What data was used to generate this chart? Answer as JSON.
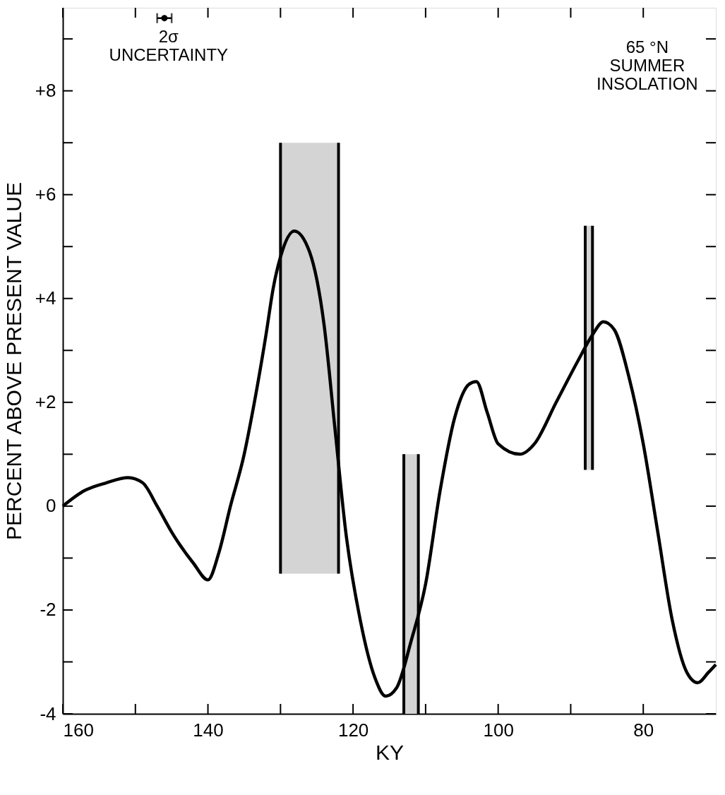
{
  "chart_data": {
    "type": "line",
    "xlabel": "KY",
    "ylabel": "PERCENT ABOVE PRESENT VALUE",
    "xlim": [
      160,
      70
    ],
    "ylim": [
      -4,
      9.6
    ],
    "xticks": [
      160,
      {
        "value": 150,
        "label": null
      },
      140,
      {
        "value": 130,
        "label": null
      },
      120,
      {
        "value": 110,
        "label": null
      },
      100,
      {
        "value": 90,
        "label": null
      },
      80
    ],
    "yticks": [
      {
        "value": -4,
        "label": "-4"
      },
      {
        "value": -3,
        "label": null
      },
      {
        "value": -2,
        "label": "-2"
      },
      {
        "value": -1,
        "label": null
      },
      0,
      {
        "value": 1,
        "label": null
      },
      {
        "value": 2,
        "label": "+2"
      },
      {
        "value": 3,
        "label": null
      },
      {
        "value": 4,
        "label": "+4"
      },
      {
        "value": 5,
        "label": null
      },
      {
        "value": 6,
        "label": "+6"
      },
      {
        "value": 7,
        "label": null
      },
      {
        "value": 8,
        "label": "+8"
      },
      {
        "value": 9,
        "label": null
      }
    ],
    "grid": false,
    "marker": "none",
    "line_style": "solid",
    "series": [
      {
        "color": "#000000",
        "x": [
          160,
          157,
          154,
          151,
          149,
          147,
          145,
          142,
          140,
          138.5,
          136.9,
          135,
          134,
          132,
          131,
          130,
          128.1,
          126,
          124,
          122.5,
          121,
          119,
          117,
          115.5,
          114,
          112,
          110,
          108,
          106,
          104,
          103,
          101.5,
          100,
          97,
          95,
          92,
          89,
          87,
          85.5,
          84,
          82,
          80,
          78,
          76,
          74,
          72.5,
          71,
          70
        ],
        "values": [
          0,
          0.3,
          0.45,
          0.55,
          0.45,
          0,
          -0.5,
          -1.1,
          -1.42,
          -0.9,
          0,
          1.0,
          1.7,
          3.3,
          4.2,
          4.8,
          5.3,
          4.9,
          3.5,
          1.5,
          -0.5,
          -2.2,
          -3.3,
          -3.66,
          -3.5,
          -2.6,
          -1.5,
          0.3,
          1.7,
          2.35,
          2.4,
          1.8,
          1.2,
          1.0,
          1.2,
          2.0,
          2.8,
          3.3,
          3.55,
          3.4,
          2.5,
          1.2,
          -0.5,
          -2.2,
          -3.2,
          -3.4,
          -3.2,
          -3.05
        ]
      },
      {
        "color": "#d4d4d4",
        "x": [
          130,
          122
        ],
        "values": [
          null,
          null
        ],
        "lower": [
          -1.3,
          -1.3
        ],
        "upper": [
          7,
          7
        ]
      },
      {
        "color": "#d4d4d4",
        "x": [
          113,
          111
        ],
        "values": [
          null,
          null
        ],
        "lower": [
          -4,
          -4
        ],
        "upper": [
          1,
          1
        ]
      },
      {
        "color": "#d4d4d4",
        "x": [
          88,
          87
        ],
        "values": [
          null,
          null
        ],
        "lower": [
          0.7,
          0.7
        ],
        "upper": [
          5.4,
          5.4
        ]
      },
      {
        "color": "#000000",
        "x": [
          130,
          130
        ],
        "values": [
          -1.3,
          7
        ]
      },
      {
        "color": "#000000",
        "x": [
          122,
          122
        ],
        "values": [
          -1.3,
          7
        ]
      },
      {
        "color": "#000000",
        "x": [
          113,
          113
        ],
        "values": [
          -4,
          1
        ]
      },
      {
        "color": "#000000",
        "x": [
          111,
          111
        ],
        "values": [
          -4,
          1
        ]
      },
      {
        "color": "#000000",
        "x": [
          88,
          88
        ],
        "values": [
          0.7,
          5.4
        ]
      },
      {
        "color": "#000000",
        "x": [
          87,
          87
        ],
        "values": [
          0.7,
          5.4
        ]
      },
      {
        "type": "scatter",
        "color": "#000000",
        "marker": "circle",
        "x": [
          146
        ],
        "values": [
          9.4
        ],
        "xerrors": [
          1
        ]
      }
    ],
    "annotations": [
      "2σ\nUNCERTAINTY",
      "65 °N\nSUMMER\nINSOLATION"
    ]
  }
}
